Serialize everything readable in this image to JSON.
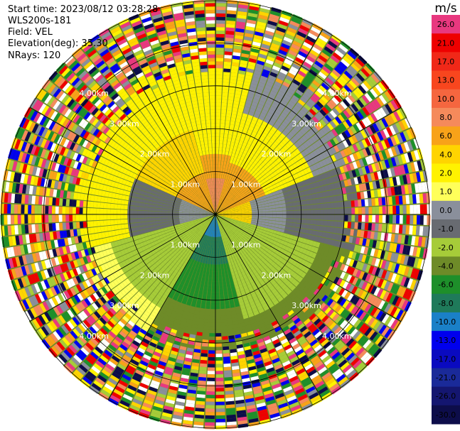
{
  "header": {
    "start_time": "Start time: 2023/08/12 03:28:28",
    "instrument": "WLS200s-181",
    "field": "Field: VEL",
    "elevation": "Elevation(deg): 35.30",
    "nrays": "NRays: 120"
  },
  "chart_data": {
    "type": "ppi-polar-heatmap",
    "field": "VEL",
    "units": "m/s",
    "n_rays": 120,
    "elevation_deg": 35.3,
    "max_range_km": 5.0,
    "range_ring_labels": [
      "1.00km",
      "2.00km",
      "3.00km",
      "4.00km"
    ],
    "range_rings_km": [
      1,
      2,
      3,
      4
    ],
    "velocity_levels": [
      {
        "label": "26.0",
        "color": "#e8387f"
      },
      {
        "label": "21.0",
        "color": "#ee0000"
      },
      {
        "label": "17.0",
        "color": "#f02818"
      },
      {
        "label": "13.0",
        "color": "#f8461e"
      },
      {
        "label": "10.0",
        "color": "#f5663f"
      },
      {
        "label": "8.0",
        "color": "#f58a5b"
      },
      {
        "label": "6.0",
        "color": "#f8a219"
      },
      {
        "label": "4.0",
        "color": "#ffd400"
      },
      {
        "label": "2.0",
        "color": "#fff200"
      },
      {
        "label": "1.0",
        "color": "#ffff5a"
      },
      {
        "label": "0.0",
        "color": "#8a8f9b"
      },
      {
        "label": "-1.0",
        "color": "#686b71"
      },
      {
        "label": "-2.0",
        "color": "#a6cc39"
      },
      {
        "label": "-4.0",
        "color": "#6e8b28"
      },
      {
        "label": "-6.0",
        "color": "#1e8f2a"
      },
      {
        "label": "-8.0",
        "color": "#1f7a5a"
      },
      {
        "label": "-10.0",
        "color": "#1a80c8"
      },
      {
        "label": "-13.0",
        "color": "#0000ee"
      },
      {
        "label": "-17.0",
        "color": "#0a0ac0"
      },
      {
        "label": "-21.0",
        "color": "#1a2a99"
      },
      {
        "label": "-26.0",
        "color": "#141670"
      },
      {
        "label": "-30.0",
        "color": "#0d0d4a"
      }
    ],
    "noise_palette": [
      "#e8387f",
      "#ee0000",
      "#ffd400",
      "#fff200",
      "#8a8f9b",
      "#1e8f2a",
      "#0000ee",
      "#f8a219",
      "#a6cc39",
      "#0d0d4a",
      "#f58a5b"
    ]
  }
}
